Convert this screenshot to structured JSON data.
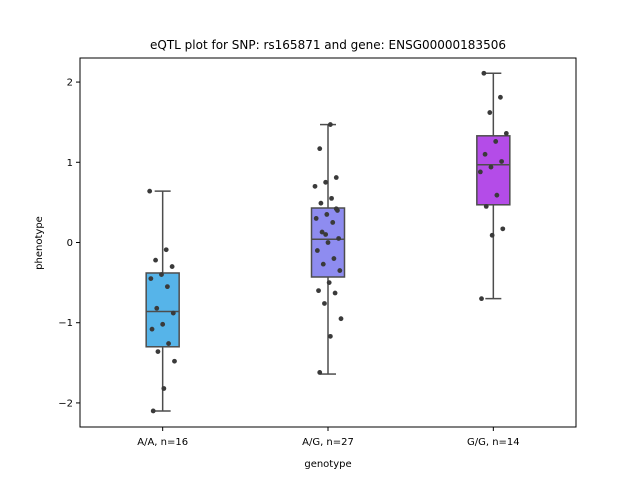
{
  "chart_data": {
    "type": "box",
    "title": "eQTL plot for SNP: rs165871 and gene: ENSG00000183506",
    "xlabel": "genotype",
    "ylabel": "phenotype",
    "ylim": [
      -2.3,
      2.3
    ],
    "yticks": [
      -2,
      -1,
      0,
      1,
      2
    ],
    "ytick_labels": [
      "−2",
      "−1",
      "0",
      "1",
      "2"
    ],
    "grid": false,
    "categories": [
      "A/A, n=16",
      "A/G, n=27",
      "G/G, n=14"
    ],
    "colors": [
      "#56b4e9",
      "#8e8cf0",
      "#b44ce8"
    ],
    "boxes": [
      {
        "whislo": -2.1,
        "q1": -1.3,
        "med": -0.86,
        "q3": -0.38,
        "whishi": 0.64
      },
      {
        "whislo": -1.64,
        "q1": -0.43,
        "med": 0.04,
        "q3": 0.43,
        "whishi": 1.47
      },
      {
        "whislo": -0.7,
        "q1": 0.47,
        "med": 0.97,
        "q3": 1.33,
        "whishi": 2.11
      }
    ],
    "points": [
      [
        0.64,
        -0.09,
        -0.22,
        -0.3,
        -0.4,
        -0.45,
        -0.55,
        -0.82,
        -0.88,
        -1.02,
        -1.08,
        -1.26,
        -1.36,
        -1.48,
        -1.82,
        -2.1
      ],
      [
        1.47,
        1.17,
        0.81,
        0.75,
        0.7,
        0.55,
        0.49,
        0.4,
        0.35,
        0.3,
        0.25,
        0.13,
        0.05,
        0.0,
        -0.1,
        -0.2,
        -0.27,
        -0.35,
        -0.5,
        -0.6,
        -0.63,
        -0.76,
        -0.95,
        -1.17,
        -1.62,
        0.42,
        0.1
      ],
      [
        2.11,
        1.81,
        1.62,
        1.36,
        1.26,
        1.1,
        1.01,
        0.94,
        0.88,
        0.59,
        0.45,
        0.17,
        0.09,
        -0.7
      ]
    ],
    "point_color": "#3a3a3a"
  }
}
